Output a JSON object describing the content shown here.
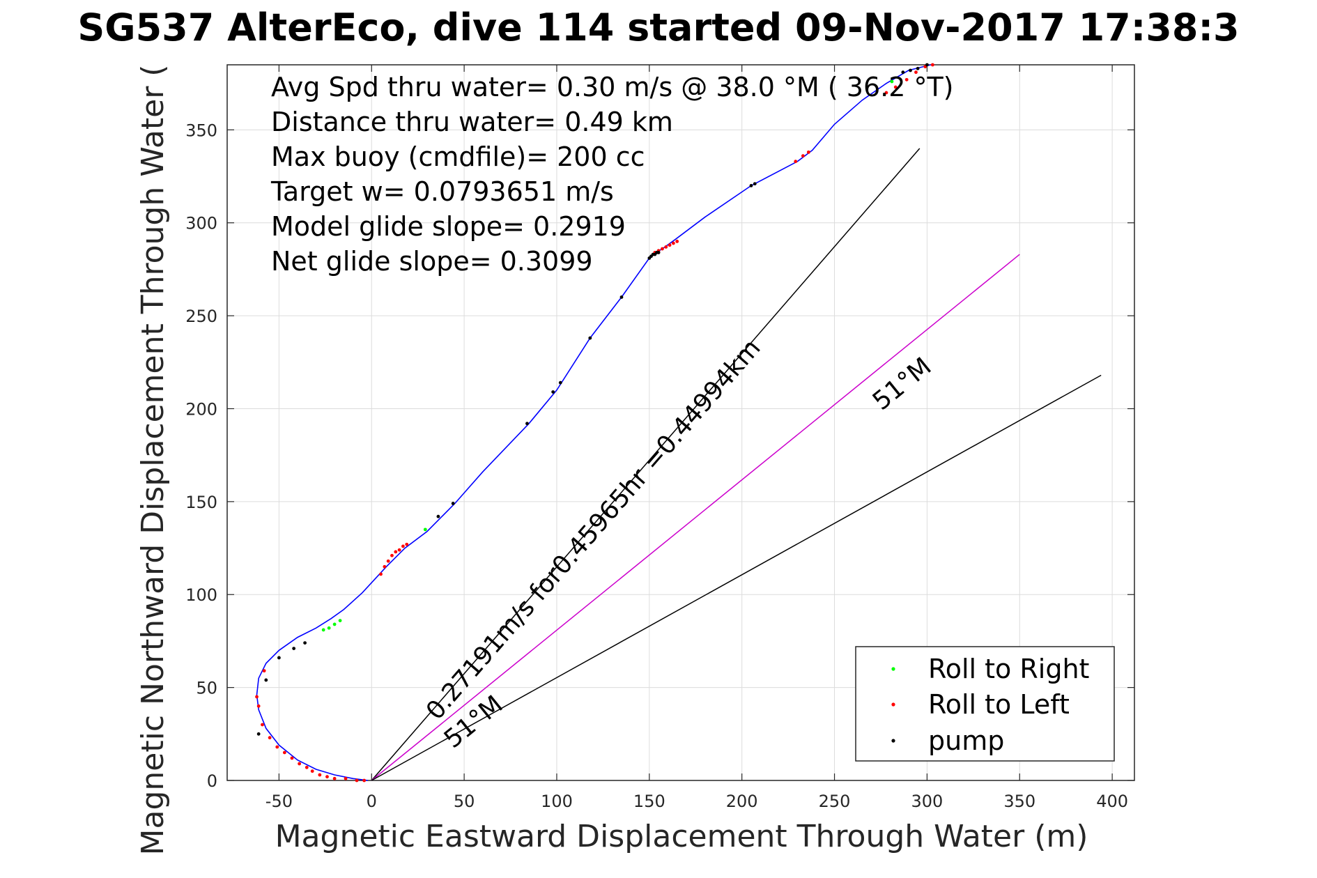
{
  "chart_data": {
    "type": "line",
    "title": "SG537 AlterEco, dive 114 started 09-Nov-2017 17:38:3",
    "xlabel": "Magnetic Eastward Displacement Through Water (m)",
    "ylabel": "Magnetic Northward Displacement Through Water (",
    "xlim": [
      -78,
      412
    ],
    "ylim": [
      0,
      385
    ],
    "xticks": [
      -50,
      0,
      50,
      100,
      150,
      200,
      250,
      300,
      350,
      400
    ],
    "yticks": [
      0,
      50,
      100,
      150,
      200,
      250,
      300,
      350
    ],
    "grid": true,
    "annotations": [
      "Avg Spd thru water=  0.30 m/s @  38.0 °M ( 36.2 °T)",
      "Distance thru water=  0.49 km",
      "Max buoy (cmdfile)= 200 cc",
      "Target w= 0.0793651 m/s",
      "Model glide slope= 0.2919",
      "Net glide slope= 0.3099"
    ],
    "rotated_labels": {
      "speed": "0.27191m/s for0.45965hr =0.44994km",
      "heading_upper": "51°M",
      "heading_lower": "51°M"
    },
    "legend": {
      "placement": "bottom-right",
      "entries": [
        {
          "label": "Roll to Right",
          "color": "#00ff00"
        },
        {
          "label": "Roll to Left",
          "color": "#ff0000"
        },
        {
          "label": "pump",
          "color": "#000000"
        }
      ]
    },
    "track": {
      "name": "track",
      "color": "#0000ff",
      "x": [
        -2,
        -10,
        -20,
        -30,
        -40,
        -50,
        -57,
        -61,
        -62,
        -61,
        -57,
        -50,
        -40,
        -30,
        -22,
        -15,
        -5,
        8,
        18,
        30,
        45,
        60,
        85,
        100,
        118,
        135,
        150,
        152,
        157,
        164,
        180,
        205,
        230,
        238,
        250,
        265,
        278,
        290,
        302
      ],
      "y": [
        0,
        1,
        3,
        6,
        11,
        19,
        28,
        38,
        46,
        55,
        63,
        70,
        77,
        82,
        87,
        92,
        101,
        115,
        125,
        134,
        149,
        166,
        192,
        210,
        238,
        260,
        281,
        283,
        286,
        291,
        303,
        320,
        333,
        339,
        353,
        366,
        375,
        382,
        387
      ]
    },
    "reference_lines": [
      {
        "name": "heading-line-upper",
        "color": "#000000",
        "x": [
          0,
          296
        ],
        "y": [
          0,
          340
        ]
      },
      {
        "name": "heading-line-net",
        "color": "#cc00cc",
        "x": [
          0,
          350
        ],
        "y": [
          0,
          283
        ]
      },
      {
        "name": "heading-line-lower",
        "color": "#000000",
        "x": [
          0,
          394
        ],
        "y": [
          0,
          218
        ]
      }
    ],
    "markers": {
      "roll_right": {
        "color": "#00ff00",
        "x": [
          -26,
          -23,
          -20,
          -17,
          29,
          281
        ],
        "y": [
          81,
          82,
          84,
          86,
          135,
          376
        ]
      },
      "roll_left": {
        "color": "#ff0000",
        "x": [
          -58,
          -62,
          -61,
          -59,
          -55,
          -51,
          -47,
          -43,
          -39,
          -35,
          -32,
          -28,
          -24,
          -20,
          -14,
          -8,
          -4,
          5,
          7,
          9,
          11,
          13,
          15,
          17,
          19,
          153,
          155,
          157,
          159,
          161,
          163,
          165,
          229,
          233,
          236,
          278,
          283,
          289,
          294,
          299,
          303
        ],
        "y": [
          59,
          45,
          40,
          30,
          23,
          18,
          15,
          12,
          9,
          7,
          5,
          3,
          2,
          1,
          1,
          0,
          0,
          111,
          115,
          118,
          121,
          123,
          124,
          126,
          127,
          284,
          285,
          286,
          287,
          288,
          289,
          290,
          333,
          336,
          338,
          370,
          373,
          377,
          381,
          384,
          386
        ]
      },
      "pump": {
        "color": "#000000",
        "x": [
          -61,
          -57,
          -50,
          -42,
          -36,
          36,
          44,
          84,
          98,
          102,
          118,
          135,
          150,
          151,
          152,
          153,
          154,
          155,
          205,
          207,
          287,
          291,
          295,
          300
        ],
        "y": [
          25,
          54,
          66,
          71,
          74,
          142,
          149,
          192,
          209,
          214,
          238,
          260,
          281,
          282,
          283,
          283,
          284,
          284,
          320,
          321,
          381,
          382,
          383,
          385
        ]
      }
    }
  }
}
